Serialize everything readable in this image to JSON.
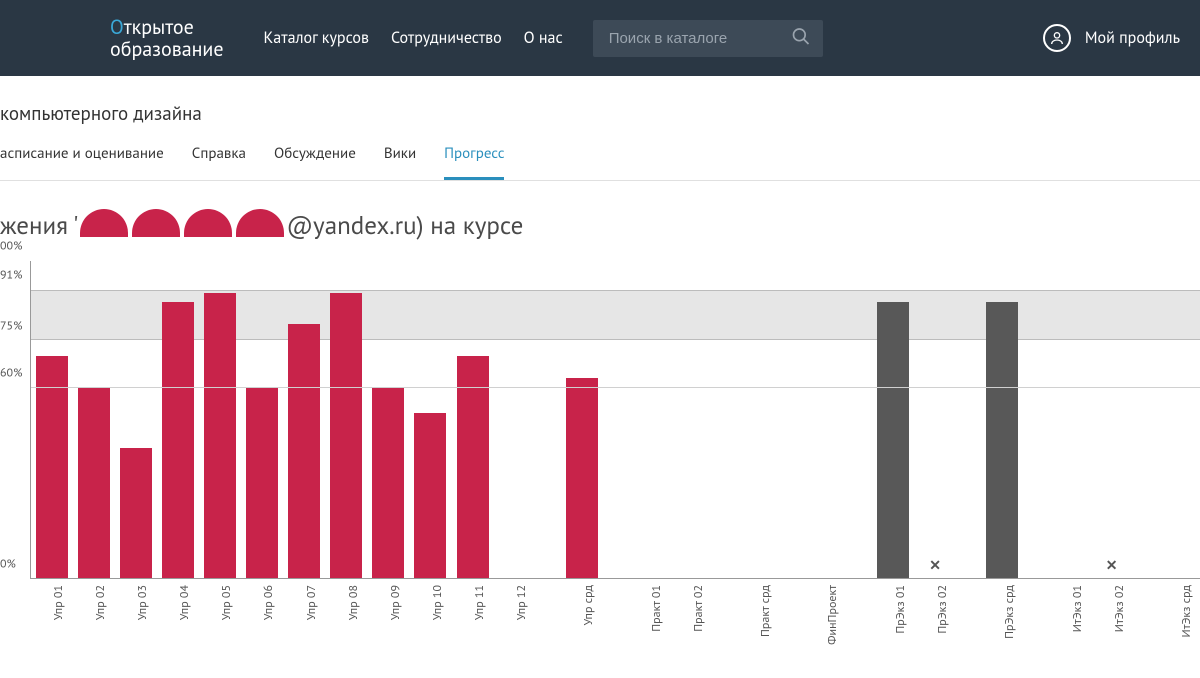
{
  "header": {
    "logo_line1_prefix": "О",
    "logo_line1_rest": "ткрытое",
    "logo_line2": "образование",
    "nav": [
      "Каталог курсов",
      "Сотрудничество",
      "О нас"
    ],
    "search_placeholder": "Поиск в каталоге",
    "profile_label": "Мой профиль"
  },
  "sub": {
    "title_fragment": "компьютерного дизайна",
    "tabs": [
      "асписание и оценивание",
      "Справка",
      "Обсуждение",
      "Вики",
      "Прогресс"
    ],
    "active_tab_index": 4
  },
  "heading": {
    "prefix": "жения '",
    "mid_visible": "@yandex.ru) на курсе",
    "redaction_count": 4
  },
  "chart": {
    "type": "bar",
    "ylim": [
      0,
      100
    ],
    "ytick_labels": [
      "0%",
      "60%",
      "75%",
      "91%",
      "00%"
    ],
    "ytick_values": [
      0,
      60,
      75,
      91,
      100
    ],
    "pass_band": {
      "from": 75,
      "to": 91,
      "color": "#e6e6e6"
    },
    "gridline_color": "#d0d0d0",
    "axis_color": "#999999",
    "background_color": "#ffffff",
    "bar_colors": {
      "exercise": "#c8234a",
      "exam": "#585858"
    },
    "bar_width_ratio": 0.76,
    "categories": [
      {
        "label": "Упр 01",
        "value": 70,
        "color_key": "exercise"
      },
      {
        "label": "Упр 02",
        "value": 60,
        "color_key": "exercise"
      },
      {
        "label": "Упр 03",
        "value": 41,
        "color_key": "exercise"
      },
      {
        "label": "Упр 04",
        "value": 87,
        "color_key": "exercise"
      },
      {
        "label": "Упр 05",
        "value": 90,
        "color_key": "exercise"
      },
      {
        "label": "Упр 06",
        "value": 60,
        "color_key": "exercise"
      },
      {
        "label": "Упр 07",
        "value": 80,
        "color_key": "exercise"
      },
      {
        "label": "Упр 08",
        "value": 90,
        "color_key": "exercise"
      },
      {
        "label": "Упр 09",
        "value": 60,
        "color_key": "exercise"
      },
      {
        "label": "Упр 10",
        "value": 52,
        "color_key": "exercise"
      },
      {
        "label": "Упр 11",
        "value": 70,
        "color_key": "exercise"
      },
      {
        "label": "Упр 12",
        "value": 0,
        "color_key": "exercise"
      },
      {
        "gap": true
      },
      {
        "label": "Упр срд",
        "value": 63,
        "color_key": "exercise"
      },
      {
        "gap": true
      },
      {
        "label": "Практ 01",
        "value": 0,
        "color_key": "exercise"
      },
      {
        "label": "Практ 02",
        "value": 0,
        "color_key": "exercise"
      },
      {
        "gap": true
      },
      {
        "label": "Практ срд",
        "value": 0,
        "color_key": "exercise"
      },
      {
        "gap": true
      },
      {
        "label": "ФинПроект",
        "value": 0,
        "color_key": "exercise"
      },
      {
        "gap": true
      },
      {
        "label": "ПрЭкз 01",
        "value": 87,
        "color_key": "exam"
      },
      {
        "label": "ПрЭкз 02",
        "value": 0,
        "color_key": "exam",
        "mark": "x"
      },
      {
        "gap": true
      },
      {
        "label": "ПрЭкз срд",
        "value": 87,
        "color_key": "exam"
      },
      {
        "gap": true
      },
      {
        "label": "ИтЭкз 01",
        "value": 0,
        "color_key": "exam"
      },
      {
        "label": "ИтЭкз 02",
        "value": 0,
        "color_key": "exam",
        "mark": "x"
      },
      {
        "gap": true
      },
      {
        "label": "ИтЭкз срд",
        "value": 0,
        "color_key": "exam"
      }
    ],
    "x_label_fontsize": 12,
    "y_label_fontsize": 12
  }
}
